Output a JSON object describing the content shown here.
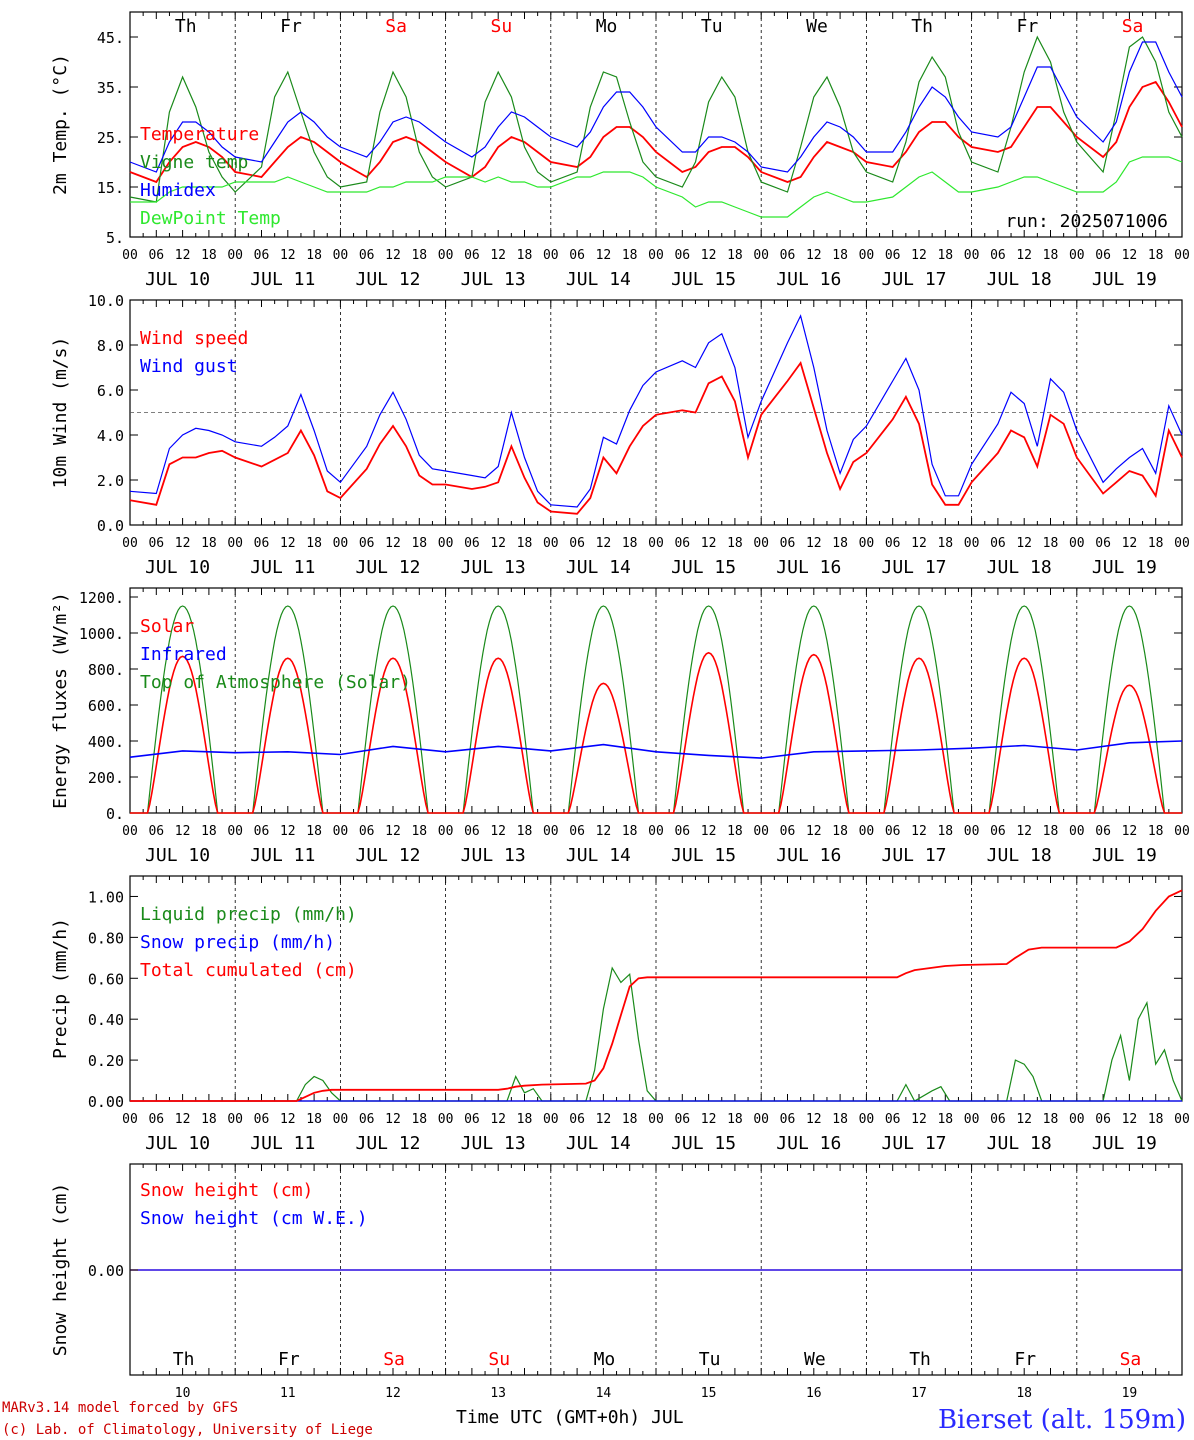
{
  "chart_data": [
    {
      "type": "line",
      "panel": "temperature",
      "ylabel": "2m Temp. (°C)",
      "ylim": [
        5,
        50
      ],
      "yticks": [
        "5.",
        "15.",
        "25.",
        "35.",
        "45."
      ],
      "ytick_values": [
        5,
        15,
        25,
        35,
        45
      ],
      "day_labels": [
        "Th",
        "Fr",
        "Sa",
        "Su",
        "Mo",
        "Tu",
        "We",
        "Th",
        "Fr",
        "Sa"
      ],
      "run_label": "run: 2025071006",
      "x_hours": [
        0,
        6,
        9,
        12,
        15,
        18,
        21,
        24,
        30,
        33,
        36,
        39,
        42,
        45,
        48,
        54,
        57,
        60,
        63,
        66,
        69,
        72,
        78,
        81,
        84,
        87,
        90,
        93,
        96,
        102,
        105,
        108,
        111,
        114,
        117,
        120,
        126,
        129,
        132,
        135,
        138,
        141,
        144,
        150,
        153,
        156,
        159,
        162,
        165,
        168,
        174,
        177,
        180,
        183,
        186,
        189,
        192,
        198,
        201,
        204,
        207,
        210,
        213,
        216,
        222,
        225,
        228,
        231,
        234,
        237,
        240
      ],
      "series": [
        {
          "name": "Temperature",
          "color": "#ff0000",
          "values": [
            18,
            16,
            20,
            23,
            24,
            23,
            21,
            18,
            17,
            20,
            23,
            25,
            24,
            22,
            20,
            17,
            20,
            24,
            25,
            24,
            22,
            20,
            17,
            19,
            23,
            25,
            24,
            22,
            20,
            19,
            21,
            25,
            27,
            27,
            25,
            22,
            18,
            19,
            22,
            23,
            23,
            21,
            18,
            16,
            17,
            21,
            24,
            23,
            22,
            20,
            19,
            22,
            26,
            28,
            28,
            25,
            23,
            22,
            23,
            27,
            31,
            31,
            28,
            25,
            21,
            24,
            31,
            35,
            36,
            32,
            27
          ]
        },
        {
          "name": "Vigne temp",
          "color": "#1a8a1a",
          "values": [
            13,
            12,
            30,
            37,
            31,
            22,
            17,
            14,
            19,
            33,
            38,
            30,
            22,
            17,
            15,
            16,
            30,
            38,
            33,
            22,
            17,
            15,
            17,
            32,
            38,
            33,
            23,
            18,
            16,
            18,
            31,
            38,
            37,
            28,
            20,
            17,
            15,
            20,
            32,
            37,
            33,
            22,
            16,
            14,
            23,
            33,
            37,
            31,
            22,
            18,
            16,
            24,
            36,
            41,
            37,
            26,
            20,
            18,
            27,
            38,
            45,
            40,
            30,
            24,
            18,
            30,
            43,
            45,
            40,
            30,
            25
          ]
        },
        {
          "name": "Humidex",
          "color": "#0000ff",
          "values": [
            20,
            18,
            24,
            28,
            28,
            26,
            23,
            21,
            20,
            24,
            28,
            30,
            28,
            25,
            23,
            21,
            24,
            28,
            29,
            28,
            26,
            24,
            21,
            23,
            27,
            30,
            29,
            27,
            25,
            23,
            26,
            31,
            34,
            34,
            31,
            27,
            22,
            22,
            25,
            25,
            24,
            22,
            19,
            18,
            21,
            25,
            28,
            27,
            25,
            22,
            22,
            26,
            31,
            35,
            33,
            29,
            26,
            25,
            27,
            33,
            39,
            39,
            34,
            29,
            24,
            28,
            38,
            44,
            44,
            38,
            33
          ]
        },
        {
          "name": "DewPoint Temp",
          "color": "#2ee82e",
          "values": [
            12,
            12,
            14,
            15,
            15,
            15,
            15,
            16,
            16,
            16,
            17,
            16,
            15,
            14,
            14,
            14,
            15,
            15,
            16,
            16,
            16,
            17,
            17,
            16,
            17,
            16,
            16,
            15,
            15,
            17,
            17,
            18,
            18,
            18,
            17,
            15,
            13,
            11,
            12,
            12,
            11,
            10,
            9,
            9,
            11,
            13,
            14,
            13,
            12,
            12,
            13,
            15,
            17,
            18,
            16,
            14,
            14,
            15,
            16,
            17,
            17,
            16,
            15,
            14,
            14,
            16,
            20,
            21,
            21,
            21,
            20
          ]
        }
      ]
    },
    {
      "type": "line",
      "panel": "wind",
      "ylabel": "10m Wind (m/s)",
      "ylim": [
        0,
        10
      ],
      "yticks": [
        "0.0",
        "2.0",
        "4.0",
        "6.0",
        "8.0",
        "10.0"
      ],
      "ytick_values": [
        0,
        2,
        4,
        6,
        8,
        10
      ],
      "reference_line": 5,
      "x_hours": [
        0,
        6,
        9,
        12,
        15,
        18,
        21,
        24,
        30,
        33,
        36,
        39,
        42,
        45,
        48,
        54,
        57,
        60,
        63,
        66,
        69,
        72,
        78,
        81,
        84,
        87,
        90,
        93,
        96,
        102,
        105,
        108,
        111,
        114,
        117,
        120,
        126,
        129,
        132,
        135,
        138,
        141,
        144,
        150,
        153,
        156,
        159,
        162,
        165,
        168,
        174,
        177,
        180,
        183,
        186,
        189,
        192,
        198,
        201,
        204,
        207,
        210,
        213,
        216,
        222,
        225,
        228,
        231,
        234,
        237,
        240
      ],
      "series": [
        {
          "name": "Wind speed",
          "color": "#ff0000",
          "values": [
            1.1,
            0.9,
            2.7,
            3.0,
            3.0,
            3.2,
            3.3,
            3.0,
            2.6,
            2.9,
            3.2,
            4.2,
            3.1,
            1.5,
            1.2,
            2.5,
            3.6,
            4.4,
            3.5,
            2.2,
            1.8,
            1.8,
            1.6,
            1.7,
            1.9,
            3.5,
            2.1,
            1.0,
            0.6,
            0.5,
            1.2,
            3.0,
            2.3,
            3.5,
            4.4,
            4.9,
            5.1,
            5.0,
            6.3,
            6.6,
            5.5,
            3.0,
            4.9,
            6.4,
            7.2,
            5.2,
            3.2,
            1.6,
            2.8,
            3.2,
            4.7,
            5.7,
            4.5,
            1.8,
            0.9,
            0.9,
            1.9,
            3.2,
            4.2,
            3.9,
            2.6,
            4.9,
            4.5,
            3.0,
            1.4,
            1.9,
            2.4,
            2.2,
            1.3,
            4.2,
            3.0
          ]
        },
        {
          "name": "Wind gust",
          "color": "#0000ff",
          "values": [
            1.5,
            1.4,
            3.4,
            4.0,
            4.3,
            4.2,
            4.0,
            3.7,
            3.5,
            3.9,
            4.4,
            5.8,
            4.2,
            2.4,
            1.9,
            3.5,
            4.9,
            5.9,
            4.7,
            3.1,
            2.5,
            2.4,
            2.2,
            2.1,
            2.6,
            5.0,
            3.0,
            1.5,
            0.9,
            0.8,
            1.6,
            3.9,
            3.6,
            5.1,
            6.2,
            6.8,
            7.3,
            7.0,
            8.1,
            8.5,
            7.0,
            3.9,
            5.5,
            8.1,
            9.3,
            7.0,
            4.2,
            2.3,
            3.8,
            4.4,
            6.4,
            7.4,
            6.0,
            2.7,
            1.3,
            1.3,
            2.7,
            4.5,
            5.9,
            5.4,
            3.5,
            6.5,
            5.9,
            4.2,
            1.9,
            2.5,
            3.0,
            3.4,
            2.3,
            5.3,
            4.0
          ]
        }
      ]
    },
    {
      "type": "line",
      "panel": "energy",
      "ylabel": "Energy fluxes (W/m²)",
      "ylim": [
        0,
        1250
      ],
      "yticks": [
        "0.",
        "200.",
        "400.",
        "600.",
        "800.",
        "1000.",
        "1200."
      ],
      "ytick_values": [
        0,
        200,
        400,
        600,
        800,
        1000,
        1200
      ],
      "solar_peaks": [
        870,
        860,
        860,
        860,
        720,
        890,
        880,
        860,
        860,
        710
      ],
      "series": [
        {
          "name": "Solar",
          "color": "#ff0000"
        },
        {
          "name": "Infrared",
          "color": "#0000ff",
          "x_hours": [
            0,
            12,
            24,
            36,
            48,
            60,
            72,
            84,
            96,
            108,
            120,
            132,
            144,
            156,
            168,
            180,
            192,
            204,
            216,
            228,
            240
          ],
          "values": [
            310,
            345,
            335,
            340,
            325,
            370,
            340,
            370,
            345,
            380,
            340,
            320,
            305,
            340,
            345,
            350,
            360,
            375,
            350,
            390,
            400
          ]
        },
        {
          "name": "Top of Atmosphere (Solar)",
          "color": "#1a8a1a",
          "peak": 1150
        }
      ]
    },
    {
      "type": "line",
      "panel": "precip",
      "ylabel": "Precip (mm/h)",
      "ylim": [
        0,
        1.1
      ],
      "yticks": [
        "0.00",
        "0.20",
        "0.40",
        "0.60",
        "0.80",
        "1.00"
      ],
      "ytick_values": [
        0,
        0.2,
        0.4,
        0.6,
        0.8,
        1.0
      ],
      "series": [
        {
          "name": "Liquid precip (mm/h)",
          "color": "#1a8a1a",
          "x_hours": [
            0,
            38,
            40,
            42,
            44,
            46,
            48,
            86,
            88,
            90,
            92,
            94,
            104,
            106,
            108,
            110,
            112,
            114,
            116,
            118,
            120,
            175,
            177,
            179,
            183,
            185,
            187,
            190,
            200,
            202,
            204,
            206,
            208,
            222,
            224,
            226,
            228,
            230,
            232,
            234,
            236,
            238,
            240
          ],
          "values": [
            0,
            0,
            0.08,
            0.12,
            0.1,
            0.04,
            0,
            0,
            0.12,
            0.04,
            0.06,
            0,
            0,
            0.15,
            0.45,
            0.65,
            0.58,
            0.62,
            0.3,
            0.05,
            0,
            0,
            0.08,
            0,
            0.05,
            0.07,
            0,
            0,
            0,
            0.2,
            0.18,
            0.12,
            0,
            0,
            0.2,
            0.32,
            0.1,
            0.4,
            0.48,
            0.18,
            0.25,
            0.1,
            0
          ]
        },
        {
          "name": "Snow precip (mm/h)",
          "color": "#0000ff",
          "x_hours": [
            0,
            240
          ],
          "values": [
            0,
            0
          ]
        },
        {
          "name": "Total cumulated (cm)",
          "color": "#ff0000",
          "x_hours": [
            0,
            38,
            40,
            42,
            44,
            46,
            48,
            84,
            86,
            88,
            90,
            94,
            104,
            106,
            108,
            110,
            112,
            114,
            116,
            118,
            120,
            175,
            177,
            179,
            186,
            190,
            200,
            202,
            205,
            208,
            225,
            228,
            231,
            234,
            237,
            240
          ],
          "values": [
            0,
            0,
            0.02,
            0.04,
            0.05,
            0.055,
            0.055,
            0.055,
            0.06,
            0.07,
            0.075,
            0.08,
            0.085,
            0.1,
            0.16,
            0.28,
            0.42,
            0.56,
            0.6,
            0.605,
            0.605,
            0.605,
            0.625,
            0.64,
            0.66,
            0.665,
            0.67,
            0.7,
            0.74,
            0.75,
            0.75,
            0.78,
            0.84,
            0.93,
            1.0,
            1.03
          ]
        }
      ]
    },
    {
      "type": "line",
      "panel": "snow",
      "ylabel": "Snow height (cm)",
      "yticks": [
        "0.00"
      ],
      "ytick_values": [
        0
      ],
      "series": [
        {
          "name": "Snow height (cm)",
          "color": "#ff0000",
          "values": [
            0,
            0
          ]
        },
        {
          "name": "Snow height (cm W.E.)",
          "color": "#0000ff",
          "values": [
            0,
            0
          ]
        }
      ]
    }
  ],
  "hour_ticks": [
    "00",
    "06",
    "12",
    "18"
  ],
  "date_labels": [
    "JUL 10",
    "JUL 11",
    "JUL 12",
    "JUL 13",
    "JUL 14",
    "JUL 15",
    "JUL 16",
    "JUL 17",
    "JUL 18",
    "JUL 19"
  ],
  "bottom_day_numbers": [
    "10",
    "11",
    "12",
    "13",
    "14",
    "15",
    "16",
    "17",
    "18",
    "19"
  ],
  "weekend_color": "#ff0000",
  "weekend_days": [
    2,
    3,
    9
  ],
  "footer": {
    "model": "MARv3.14 model forced by GFS",
    "copyright": "(c) Lab. of Climatology, University of Liege",
    "x_title": "Time UTC (GMT+0h) JUL",
    "station": "Bierset (alt. 159m)"
  }
}
